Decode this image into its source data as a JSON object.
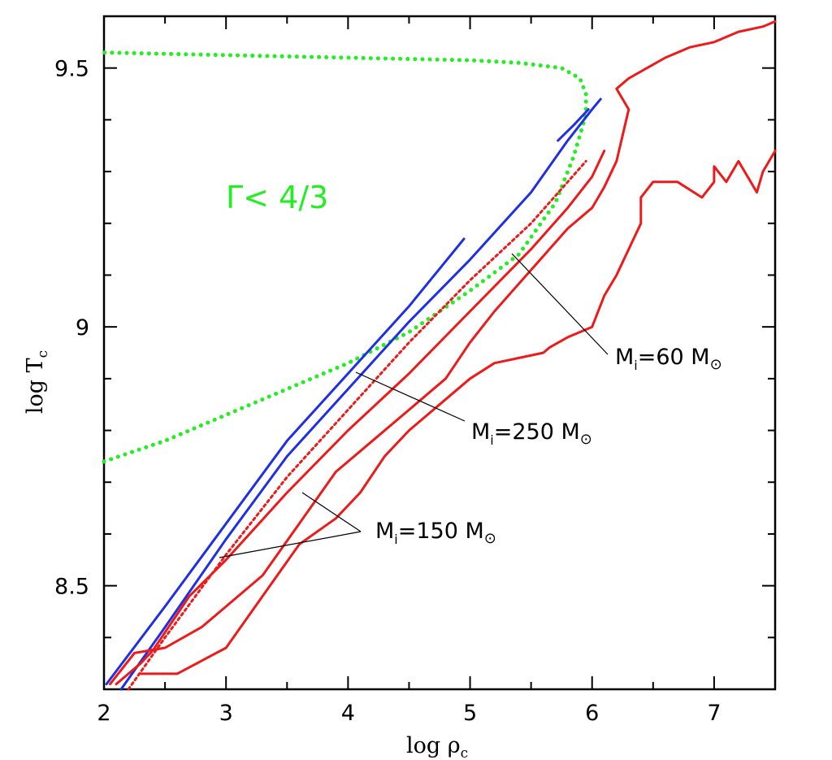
{
  "chart_data": {
    "type": "line",
    "xlabel": "log ρc",
    "ylabel": "log Tc",
    "xlim": [
      2,
      7.5
    ],
    "ylim": [
      8.3,
      9.6
    ],
    "x_ticks": [
      "2",
      "3",
      "4",
      "5",
      "6",
      "7"
    ],
    "y_ticks": [
      "8.5",
      "9",
      "9.5"
    ],
    "grid": false,
    "region_label": "Γ< 4/3",
    "colors": {
      "blue": "#1f2fe6",
      "red": "#ee1a1a",
      "green": "#22ee22",
      "annotation": "#000000"
    },
    "series": [
      {
        "color": "#22ee22",
        "style": "dotted",
        "x": [
          2.0,
          2.5,
          3.0,
          3.5,
          4.0,
          4.5,
          5.0,
          5.4,
          5.7,
          5.85,
          5.95,
          5.95,
          5.9,
          5.75,
          5.4,
          5.0,
          4.0,
          3.0,
          2.0
        ],
        "y": [
          8.74,
          8.78,
          8.83,
          8.88,
          8.93,
          8.99,
          9.07,
          9.14,
          9.24,
          9.33,
          9.41,
          9.45,
          9.48,
          9.5,
          9.51,
          9.515,
          9.52,
          9.525,
          9.53
        ]
      },
      {
        "color": "#1f2fe6",
        "style": "solid",
        "x": [
          2.02,
          2.5,
          3.0,
          3.5,
          4.0,
          4.5,
          4.95
        ],
        "y": [
          8.31,
          8.46,
          8.62,
          8.78,
          8.91,
          9.04,
          9.17
        ]
      },
      {
        "color": "#1f2fe6",
        "style": "solid",
        "x": [
          2.14,
          2.5,
          3.0,
          3.5,
          4.0,
          4.5,
          5.0,
          5.5,
          5.8,
          6.0,
          6.07
        ],
        "y": [
          8.3,
          8.42,
          8.59,
          8.75,
          8.88,
          9.01,
          9.13,
          9.26,
          9.36,
          9.42,
          9.44
        ]
      },
      {
        "color": "#1f2fe6",
        "style": "solid",
        "x": [
          5.72,
          5.85,
          5.97
        ],
        "y": [
          9.36,
          9.39,
          9.42
        ]
      },
      {
        "color": "#ee1a1a",
        "style": "dotted",
        "x": [
          2.2,
          2.5,
          3.0,
          3.5,
          4.0,
          4.5,
          5.0,
          5.5,
          5.95
        ],
        "y": [
          8.3,
          8.4,
          8.56,
          8.71,
          8.84,
          8.97,
          9.09,
          9.2,
          9.32
        ]
      },
      {
        "color": "#ee1a1a",
        "style": "solid",
        "x": [
          2.1,
          2.3,
          2.4,
          2.5,
          2.7,
          3.0,
          3.5,
          4.0,
          4.5,
          5.0,
          5.5,
          5.8,
          6.0,
          6.1
        ],
        "y": [
          8.31,
          8.35,
          8.375,
          8.41,
          8.48,
          8.55,
          8.68,
          8.8,
          8.91,
          9.03,
          9.15,
          9.23,
          9.29,
          9.34
        ]
      },
      {
        "color": "#ee1a1a",
        "style": "solid",
        "x": [
          2.05,
          2.25,
          2.5,
          2.8,
          3.0,
          3.3,
          3.6,
          3.9,
          4.2,
          4.5,
          4.8,
          5.0,
          5.2,
          5.5,
          5.8,
          6.0,
          6.1,
          6.2,
          6.25,
          6.3,
          6.25,
          6.2,
          6.3,
          6.45,
          6.6,
          6.8,
          7.0,
          7.2,
          7.4,
          7.5
        ],
        "y": [
          8.31,
          8.37,
          8.38,
          8.42,
          8.46,
          8.52,
          8.62,
          8.72,
          8.78,
          8.84,
          8.9,
          8.97,
          9.03,
          9.11,
          9.19,
          9.23,
          9.27,
          9.32,
          9.37,
          9.42,
          9.44,
          9.46,
          9.48,
          9.5,
          9.52,
          9.54,
          9.55,
          9.57,
          9.58,
          9.59
        ]
      },
      {
        "color": "#ee1a1a",
        "style": "solid",
        "x": [
          2.3,
          2.6,
          3.0,
          3.3,
          3.6,
          3.9,
          4.1,
          4.3,
          4.5,
          4.8,
          5.0,
          5.2,
          5.4,
          5.6,
          5.65,
          5.8,
          6.0,
          6.1,
          6.2,
          6.3,
          6.4,
          6.4,
          6.5,
          6.7,
          6.9,
          7.0,
          7.0,
          7.1,
          7.2,
          7.3,
          7.35,
          7.4,
          7.5
        ],
        "y": [
          8.33,
          8.33,
          8.38,
          8.48,
          8.58,
          8.63,
          8.68,
          8.75,
          8.8,
          8.86,
          8.9,
          8.93,
          8.94,
          8.95,
          8.96,
          8.98,
          9.0,
          9.06,
          9.1,
          9.15,
          9.2,
          9.25,
          9.28,
          9.28,
          9.25,
          9.28,
          9.31,
          9.28,
          9.32,
          9.28,
          9.26,
          9.3,
          9.34
        ]
      }
    ],
    "annotations": [
      {
        "text": "M",
        "subscript": "i",
        "rest": "=60 M",
        "sun": "⊙"
      },
      {
        "text": "M",
        "subscript": "i",
        "rest": "=250 M",
        "sun": "⊙"
      },
      {
        "text": "M",
        "subscript": "i",
        "rest": "=150 M",
        "sun": "⊙"
      }
    ]
  }
}
